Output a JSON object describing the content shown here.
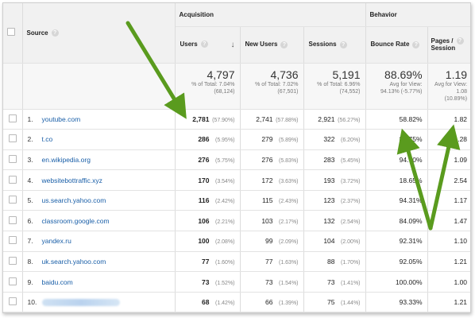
{
  "groups": {
    "acquisition": "Acquisition",
    "behavior": "Behavior"
  },
  "columns": {
    "source": "Source",
    "users": "Users",
    "new_users": "New Users",
    "sessions": "Sessions",
    "bounce_rate": "Bounce Rate",
    "pages_session_line1": "Pages /",
    "pages_session_line2": "Session"
  },
  "totals": {
    "users": {
      "value": "4,797",
      "line1": "% of Total: 7.04%",
      "line2": "(68,124)"
    },
    "new_users": {
      "value": "4,736",
      "line1": "% of Total: 7.02%",
      "line2": "(67,501)"
    },
    "sessions": {
      "value": "5,191",
      "line1": "% of Total: 6.96%",
      "line2": "(74,552)"
    },
    "bounce_rate": {
      "value": "88.69%",
      "line1": "Avg for View:",
      "line2": "94.13% (-5.77%)"
    },
    "pages_session": {
      "value": "1.19",
      "line1": "Avg for View:",
      "line2": "1.08",
      "line3": "(10.89%)"
    }
  },
  "rows": [
    {
      "idx": "1.",
      "source": "youtube.com",
      "users": "2,781",
      "users_pct": "(57.90%)",
      "new_users": "2,741",
      "new_users_pct": "(57.88%)",
      "sessions": "2,921",
      "sessions_pct": "(56.27%)",
      "bounce": "58.82%",
      "pages": "1.82"
    },
    {
      "idx": "2.",
      "source": "t.co",
      "users": "286",
      "users_pct": "(5.95%)",
      "new_users": "279",
      "new_users_pct": "(5.89%)",
      "sessions": "322",
      "sessions_pct": "(6.20%)",
      "bounce": "88.75%",
      "pages": "1.28"
    },
    {
      "idx": "3.",
      "source": "en.wikipedia.org",
      "users": "276",
      "users_pct": "(5.75%)",
      "new_users": "276",
      "new_users_pct": "(5.83%)",
      "sessions": "283",
      "sessions_pct": "(5.45%)",
      "bounce": "94.70%",
      "pages": "1.09"
    },
    {
      "idx": "4.",
      "source": "websitebottraffic.xyz",
      "users": "170",
      "users_pct": "(3.54%)",
      "new_users": "172",
      "new_users_pct": "(3.63%)",
      "sessions": "193",
      "sessions_pct": "(3.72%)",
      "bounce": "18.65%",
      "pages": "2.54"
    },
    {
      "idx": "5.",
      "source": "us.search.yahoo.com",
      "users": "116",
      "users_pct": "(2.42%)",
      "new_users": "115",
      "new_users_pct": "(2.43%)",
      "sessions": "123",
      "sessions_pct": "(2.37%)",
      "bounce": "94.31%",
      "pages": "1.17"
    },
    {
      "idx": "6.",
      "source": "classroom.google.com",
      "users": "106",
      "users_pct": "(2.21%)",
      "new_users": "103",
      "new_users_pct": "(2.17%)",
      "sessions": "132",
      "sessions_pct": "(2.54%)",
      "bounce": "84.09%",
      "pages": "1.47"
    },
    {
      "idx": "7.",
      "source": "yandex.ru",
      "users": "100",
      "users_pct": "(2.08%)",
      "new_users": "99",
      "new_users_pct": "(2.09%)",
      "sessions": "104",
      "sessions_pct": "(2.00%)",
      "bounce": "92.31%",
      "pages": "1.10"
    },
    {
      "idx": "8.",
      "source": "uk.search.yahoo.com",
      "users": "77",
      "users_pct": "(1.60%)",
      "new_users": "77",
      "new_users_pct": "(1.63%)",
      "sessions": "88",
      "sessions_pct": "(1.70%)",
      "bounce": "92.05%",
      "pages": "1.21"
    },
    {
      "idx": "9.",
      "source": "baidu.com",
      "users": "73",
      "users_pct": "(1.52%)",
      "new_users": "73",
      "new_users_pct": "(1.54%)",
      "sessions": "73",
      "sessions_pct": "(1.41%)",
      "bounce": "100.00%",
      "pages": "1.00"
    },
    {
      "idx": "10.",
      "source": "",
      "users": "68",
      "users_pct": "(1.42%)",
      "new_users": "66",
      "new_users_pct": "(1.39%)",
      "sessions": "75",
      "sessions_pct": "(1.44%)",
      "bounce": "93.33%",
      "pages": "1.21"
    }
  ],
  "icons": {
    "help": "question-circle-icon",
    "sort": "arrow-down-icon",
    "annotation": "green-arrow"
  },
  "colors": {
    "arrow": "#5a9b1e",
    "link": "#1a5fa8",
    "header_bg": "#f1f1f1"
  }
}
